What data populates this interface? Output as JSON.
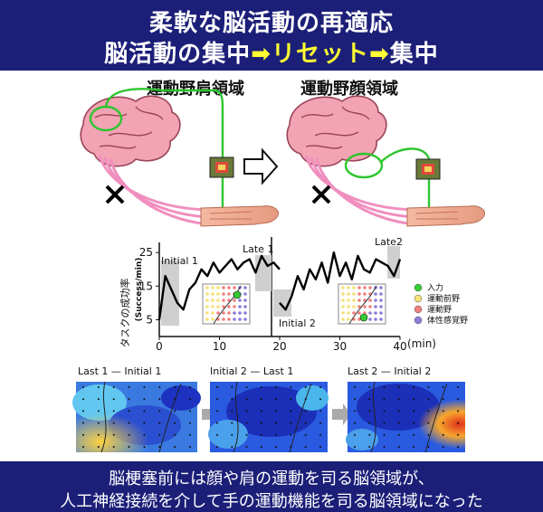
{
  "header": {
    "title_line1": "柔軟な脳活動の再適応",
    "title_line2_a": "脳活動の集中",
    "title_line2_b": "リセット",
    "title_line2_c": "集中"
  },
  "top_labels": {
    "left": "運動野肩領域",
    "right": "運動野顔領域"
  },
  "chart_data": {
    "type": "line",
    "ylabel_jp": "タスクの成功率",
    "ylabel_en": "(Success/min)",
    "x_ticks": [
      0,
      10,
      20,
      30,
      40
    ],
    "x_unit": "(min)",
    "y_ticks": [
      5,
      15,
      25
    ],
    "xlim": [
      0,
      40
    ],
    "ylim": [
      0,
      28
    ],
    "annotations": [
      "Initial 1",
      "Late 1",
      "Initial 2",
      "Late2"
    ],
    "series": [
      {
        "x": [
          0,
          1,
          2,
          3,
          4,
          5,
          6,
          7,
          8,
          9,
          10,
          11,
          12,
          13,
          14,
          15,
          16,
          17,
          18,
          19,
          20
        ],
        "values": [
          5,
          18,
          14,
          10,
          8,
          14,
          16,
          20,
          18,
          22,
          19,
          21,
          23,
          20,
          22,
          23,
          19,
          24,
          21,
          22,
          20
        ]
      },
      {
        "x": [
          20,
          21,
          22,
          23,
          24,
          25,
          26,
          27,
          28,
          29,
          30,
          31,
          32,
          33,
          34,
          35,
          36,
          37,
          38,
          39,
          40
        ],
        "values": [
          10,
          8,
          12,
          18,
          14,
          20,
          17,
          22,
          16,
          25,
          18,
          22,
          17,
          24,
          20,
          19,
          23,
          22,
          21,
          18,
          23
        ]
      }
    ],
    "legend": [
      "入力",
      "運動前野",
      "運動野",
      "体性感覚野"
    ],
    "legend_colors": [
      "#33cc33",
      "#f5e27a",
      "#f08080",
      "#8a7fd6"
    ]
  },
  "heatmaps": {
    "labels": [
      "Last 1 — Initial 1",
      "Initial 2 — Last 1",
      "Last 2 — Initial 2"
    ]
  },
  "footer": {
    "line1": "脳梗塞前には顔や肩の運動を司る脳領域が、",
    "line2": "人工神経接続を介して手の運動機能を司る脳領域になった"
  }
}
